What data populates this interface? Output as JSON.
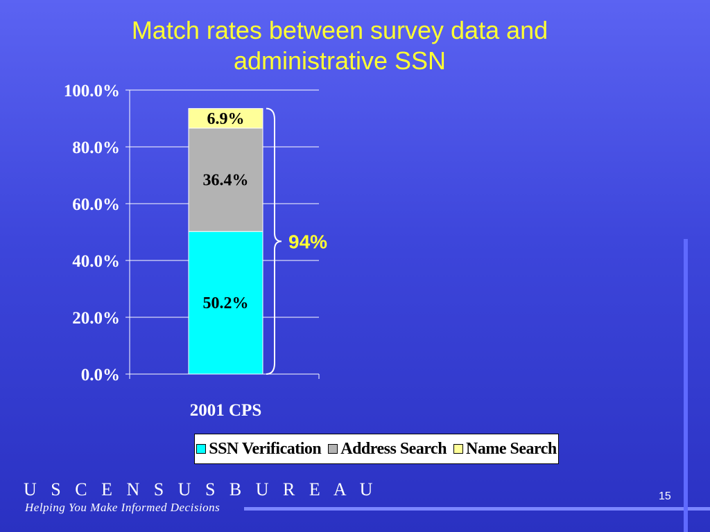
{
  "slide": {
    "title_line1": "Match rates between survey data and",
    "title_line2": "administrative SSN",
    "footer_brand": "U S C E N S U S B U R E A U",
    "footer_tagline": "Helping You Make Informed Decisions",
    "page_number": "15"
  },
  "chart_data": {
    "type": "bar",
    "stacked": true,
    "title": "Match rates between survey data and administrative SSN",
    "categories": [
      "2001 CPS"
    ],
    "series": [
      {
        "name": "SSN Verification",
        "values": [
          50.2
        ],
        "label": "50.2%",
        "color": "#00ffff"
      },
      {
        "name": "Address Search",
        "values": [
          36.4
        ],
        "label": "36.4%",
        "color": "#b3b3b3"
      },
      {
        "name": "Name Search",
        "values": [
          6.9
        ],
        "label": "6.9%",
        "color": "#ffff99"
      }
    ],
    "ylim": [
      0,
      100
    ],
    "yticks": [
      0,
      20,
      40,
      60,
      80,
      100
    ],
    "ytick_labels": [
      "0.0%",
      "20.0%",
      "40.0%",
      "60.0%",
      "80.0%",
      "100.0%"
    ],
    "grid": true,
    "legend": "bottom",
    "annotation": {
      "text": "94%",
      "color": "#ffff33"
    }
  }
}
